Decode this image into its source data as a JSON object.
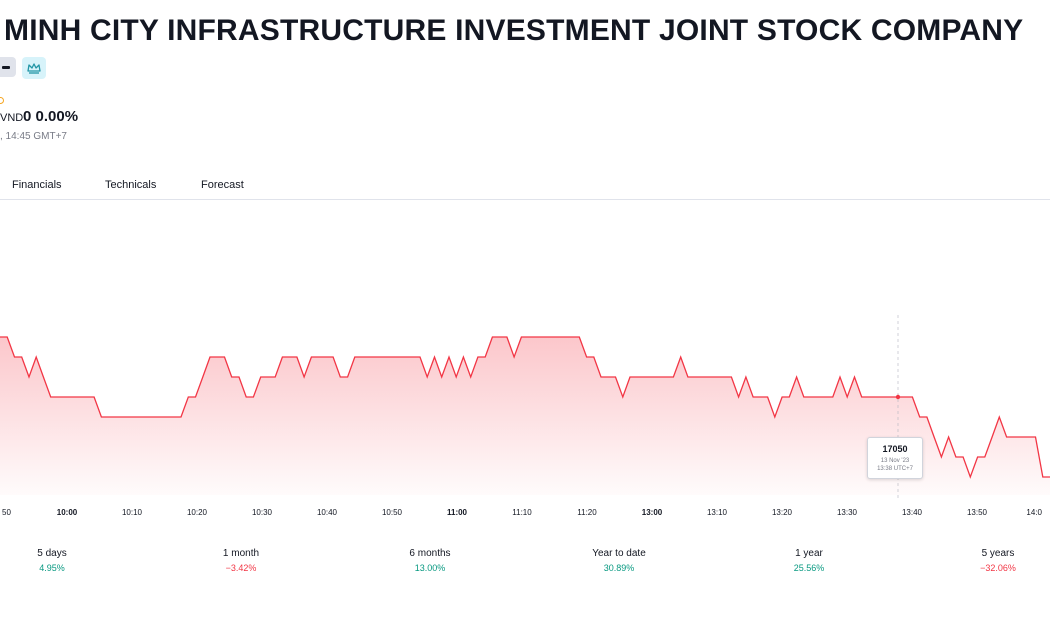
{
  "header": {
    "title": "MINH CITY INFRASTRUCTURE INVESTMENT JOINT STOCK COMPANY",
    "badges": [
      "minus-icon",
      "crown-icon"
    ]
  },
  "quote": {
    "currency": "VND",
    "change": "0 0.00%",
    "timestamp": ", 14:45 GMT+7"
  },
  "tabs": [
    {
      "label": "Financials"
    },
    {
      "label": "Technicals"
    },
    {
      "label": "Forecast"
    }
  ],
  "chart_data": {
    "type": "area",
    "color": "#f23645",
    "x_ticks": [
      "50",
      "10:00",
      "10:10",
      "10:20",
      "10:30",
      "10:40",
      "10:50",
      "11:00",
      "11:10",
      "11:20",
      "13:00",
      "13:10",
      "13:20",
      "13:30",
      "13:40",
      "13:50",
      "14:0"
    ],
    "bold_ticks": [
      "10:00",
      "11:00",
      "13:00"
    ],
    "series_relative_levels": [
      0.9,
      0.9,
      0.8,
      0.8,
      0.7,
      0.8,
      0.7,
      0.6,
      0.6,
      0.6,
      0.6,
      0.6,
      0.6,
      0.6,
      0.5,
      0.5,
      0.5,
      0.5,
      0.5,
      0.5,
      0.5,
      0.5,
      0.5,
      0.5,
      0.5,
      0.5,
      0.6,
      0.6,
      0.7,
      0.8,
      0.8,
      0.8,
      0.7,
      0.7,
      0.6,
      0.6,
      0.7,
      0.7,
      0.7,
      0.8,
      0.8,
      0.8,
      0.7,
      0.8,
      0.8,
      0.8,
      0.8,
      0.7,
      0.7,
      0.8,
      0.8,
      0.8,
      0.8,
      0.8,
      0.8,
      0.8,
      0.8,
      0.8,
      0.8,
      0.7,
      0.8,
      0.7,
      0.8,
      0.7,
      0.8,
      0.7,
      0.8,
      0.8,
      0.9,
      0.9,
      0.9,
      0.8,
      0.9,
      0.9,
      0.9,
      0.9,
      0.9,
      0.9,
      0.9,
      0.9,
      0.9,
      0.8,
      0.8,
      0.7,
      0.7,
      0.7,
      0.6,
      0.7,
      0.7,
      0.7,
      0.7,
      0.7,
      0.7,
      0.7,
      0.8,
      0.7,
      0.7,
      0.7,
      0.7,
      0.7,
      0.7,
      0.7,
      0.6,
      0.7,
      0.6,
      0.6,
      0.6,
      0.5,
      0.6,
      0.6,
      0.7,
      0.6,
      0.6,
      0.6,
      0.6,
      0.6,
      0.7,
      0.6,
      0.7,
      0.6,
      0.6,
      0.6,
      0.6,
      0.6,
      0.6,
      0.6,
      0.6,
      0.5,
      0.5,
      0.4,
      0.3,
      0.4,
      0.3,
      0.3,
      0.2,
      0.3,
      0.3,
      0.4,
      0.5,
      0.4,
      0.4,
      0.4,
      0.4,
      0.4,
      0.2,
      0.2
    ],
    "tooltip": {
      "price": "17050",
      "date": "13 Nov '23",
      "time": "13:38 UTC+7"
    }
  },
  "periods": [
    {
      "label": "5 days",
      "value": "4.95%",
      "trend": "pos"
    },
    {
      "label": "1 month",
      "value": "−3.42%",
      "trend": "neg"
    },
    {
      "label": "6 months",
      "value": "13.00%",
      "trend": "pos"
    },
    {
      "label": "Year to date",
      "value": "30.89%",
      "trend": "pos"
    },
    {
      "label": "1 year",
      "value": "25.56%",
      "trend": "pos"
    },
    {
      "label": "5 years",
      "value": "−32.06%",
      "trend": "neg"
    }
  ]
}
